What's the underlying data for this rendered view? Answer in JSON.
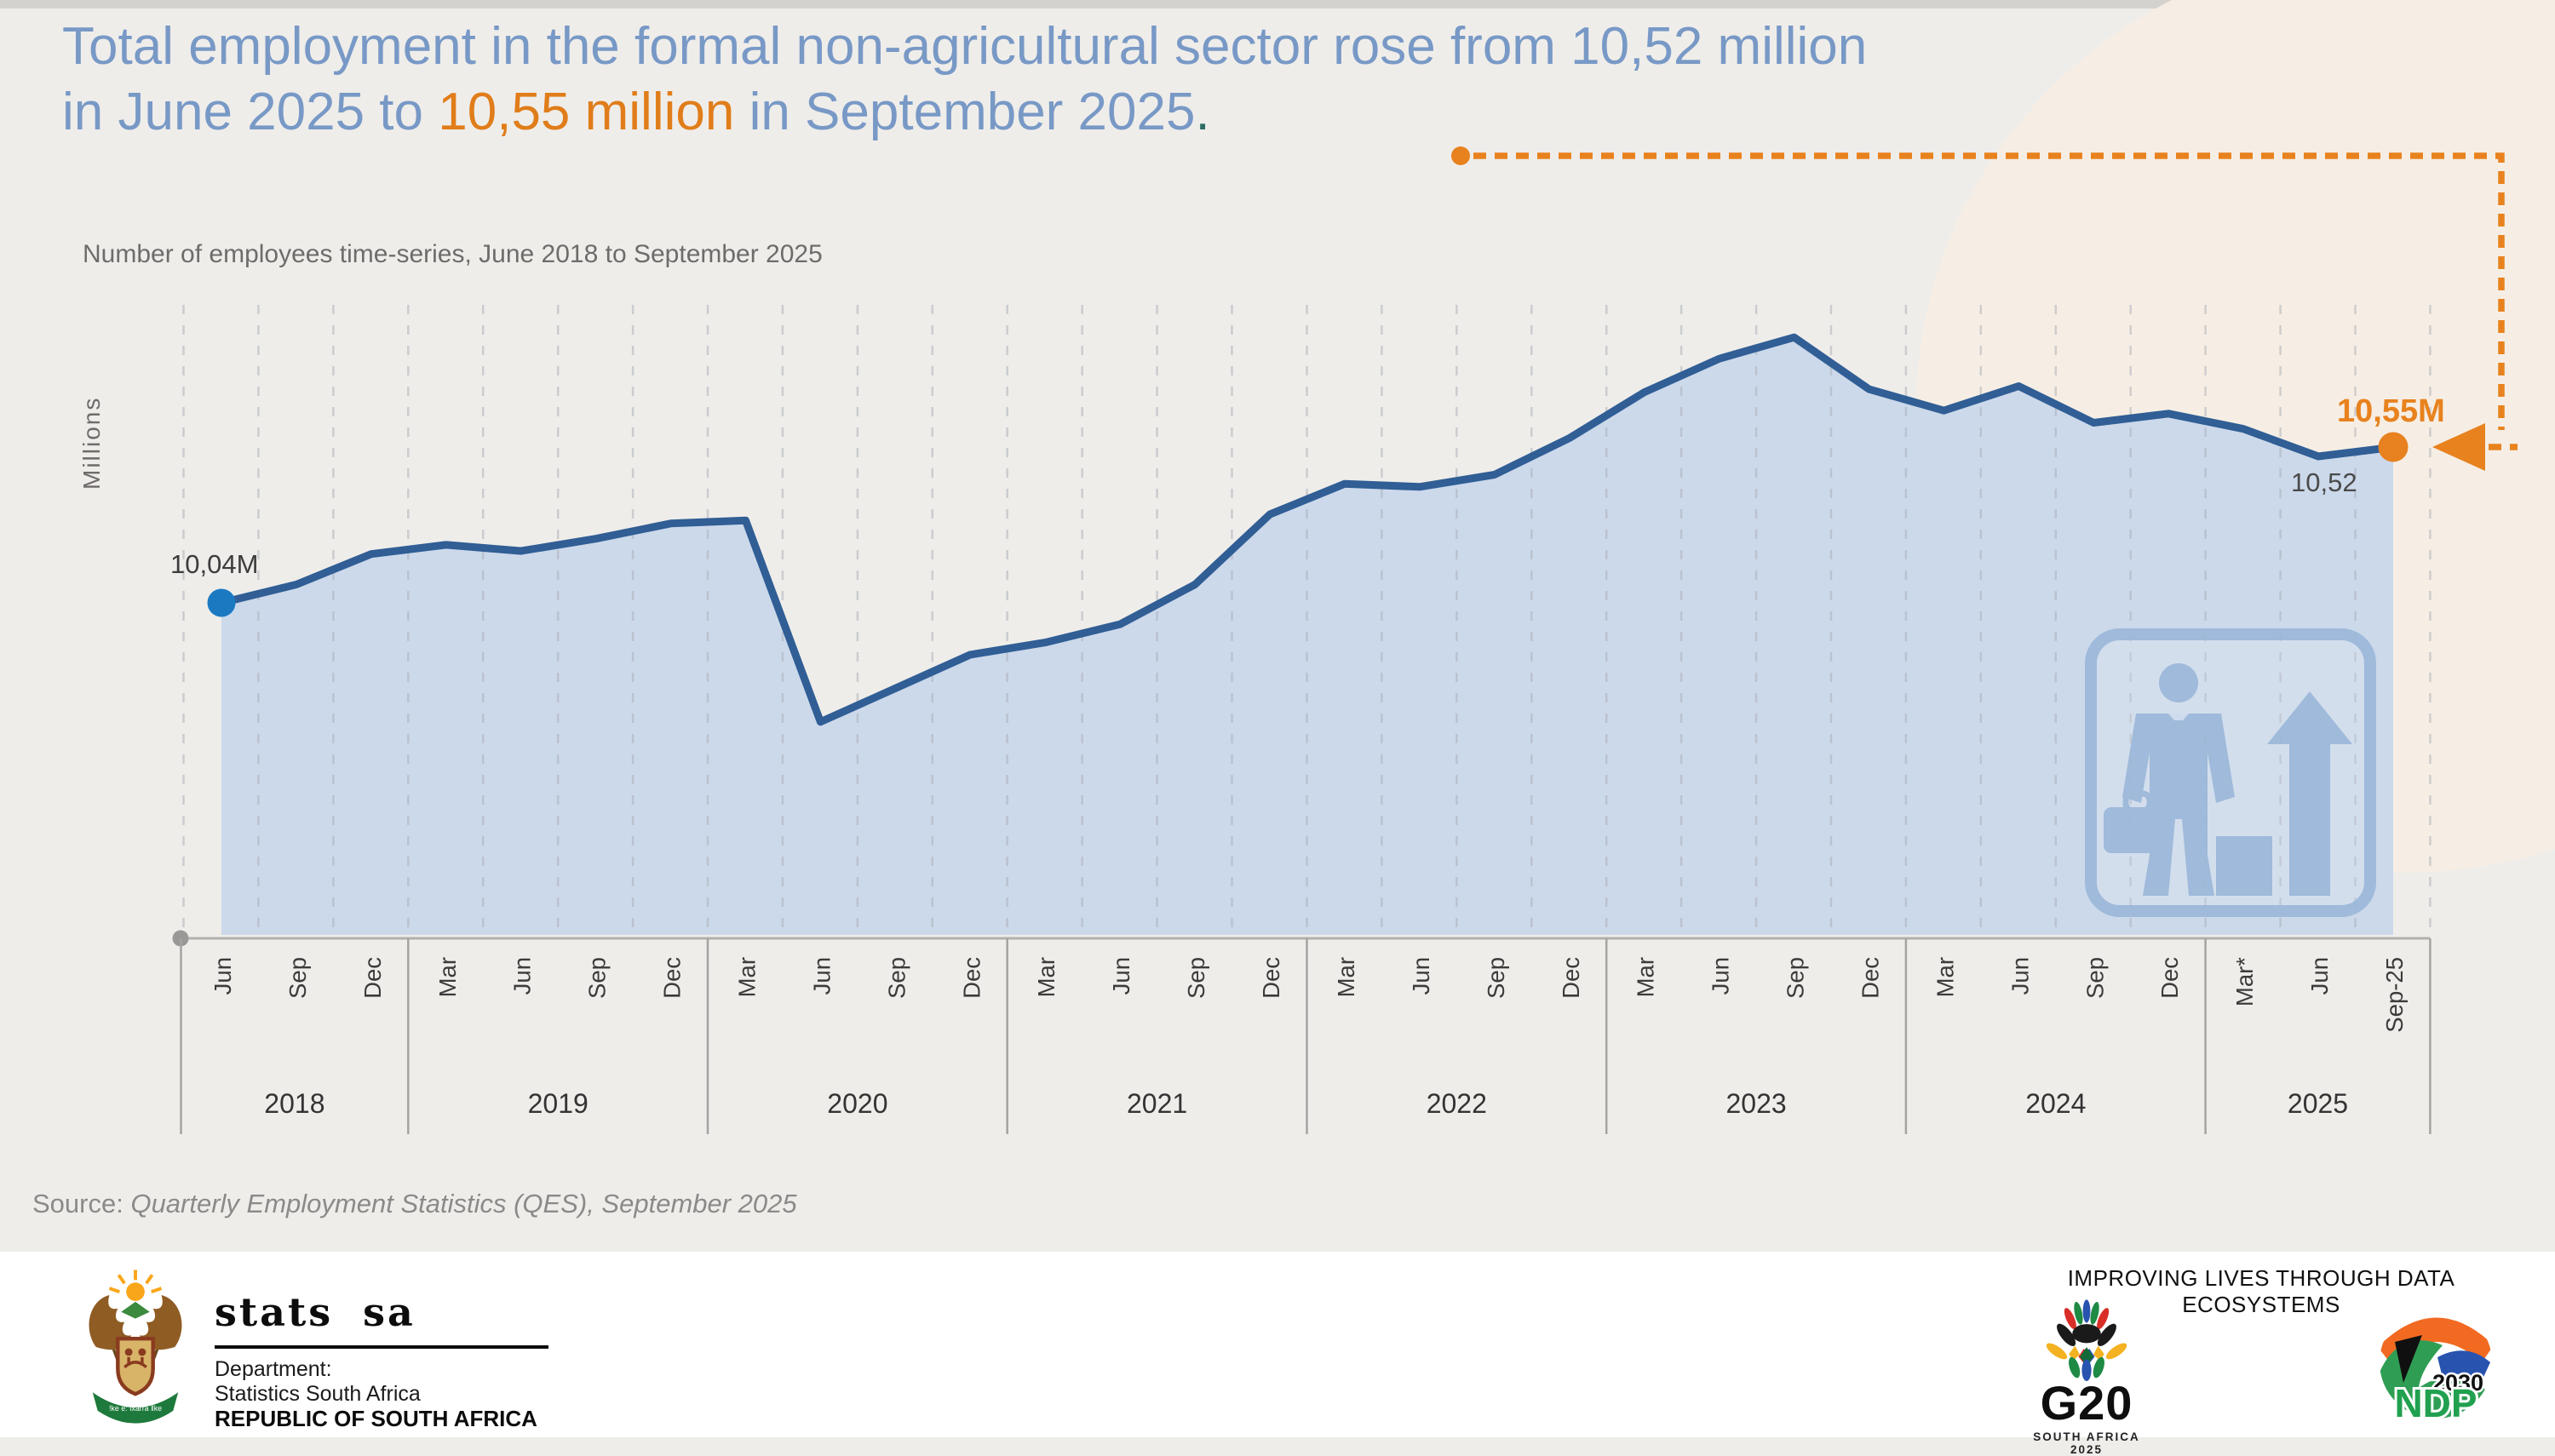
{
  "header": {
    "title_line1": "Total employment in the formal non-agricultural sector rose from 10,52 million",
    "title_line2_pre": "in June 2025 to ",
    "title_line2_highlight": "10,55 million",
    "title_line2_post": " in September 2025",
    "title_line2_period": "."
  },
  "chart": {
    "subtitle": "Number of employees time-series, June 2018 to September 2025",
    "y_axis_label": "Millions",
    "start_point_label": "10,04M",
    "june_2025_label": "10,52",
    "end_point_label": "10,55M"
  },
  "source": {
    "prefix": "Source: ",
    "text": "Quarterly Employment Statistics (QES), September 2025"
  },
  "footer": {
    "statssa_wordmark": "stats sa",
    "department_line1": "Department:",
    "department_line2": "Statistics South Africa",
    "department_line3": "REPUBLIC OF SOUTH AFRICA",
    "coat_of_arms_motto": "ǃke e: ǀxarra ǁke",
    "tagline": "IMPROVING LIVES THROUGH DATA ECOSYSTEMS",
    "g20": {
      "label": "G20",
      "sub": "SOUTH AFRICA 2025"
    },
    "ndp": {
      "year": "2030",
      "label": "NDP"
    }
  },
  "colors": {
    "title_blue": "#7899c6",
    "accent_orange": "#e8821e",
    "teal_period": "#2a6e63",
    "line_blue": "#305e95",
    "area_fill": "#ccd9eb",
    "dot_blue": "#1b79c2",
    "dot_orange": "#e8811f",
    "cream_blob": "#f6eee4",
    "page_bg": "#efedea"
  },
  "chart_data": {
    "type": "area",
    "title": "Number of employees time-series, June 2018 to September 2025",
    "xlabel": "",
    "ylabel": "Millions",
    "unit": "millions of employees",
    "ylim": [
      9.0,
      11.0
    ],
    "grid": "vertical-dashed",
    "legend": false,
    "x_labels": [
      "Jun",
      "Sep",
      "Dec",
      "Mar",
      "Jun",
      "Sep",
      "Dec",
      "Mar",
      "Jun",
      "Sep",
      "Dec",
      "Mar",
      "Jun",
      "Sep",
      "Dec",
      "Mar",
      "Jun",
      "Sep",
      "Dec",
      "Mar",
      "Jun",
      "Sep",
      "Dec",
      "Mar",
      "Jun",
      "Sep",
      "Dec",
      "Mar*",
      "Jun",
      "Sep-25"
    ],
    "year_groups": [
      {
        "label": "2018",
        "quarters": 3
      },
      {
        "label": "2019",
        "quarters": 4
      },
      {
        "label": "2020",
        "quarters": 4
      },
      {
        "label": "2021",
        "quarters": 4
      },
      {
        "label": "2022",
        "quarters": 4
      },
      {
        "label": "2023",
        "quarters": 4
      },
      {
        "label": "2024",
        "quarters": 4
      },
      {
        "label": "2025",
        "quarters": 3
      }
    ],
    "values": [
      10.04,
      10.1,
      10.2,
      10.23,
      10.21,
      10.25,
      10.3,
      10.31,
      9.65,
      9.76,
      9.87,
      9.91,
      9.97,
      10.1,
      10.33,
      10.43,
      10.42,
      10.46,
      10.58,
      10.73,
      10.84,
      10.91,
      10.74,
      10.67,
      10.75,
      10.63,
      10.66,
      10.61,
      10.52,
      10.55
    ],
    "annotations": [
      {
        "x": "Jun 2018",
        "value": 10.04,
        "label": "10,04M"
      },
      {
        "x": "Jun 2025",
        "value": 10.52,
        "label": "10,52"
      },
      {
        "x": "Sep-25",
        "value": 10.55,
        "label": "10,55M"
      }
    ]
  }
}
